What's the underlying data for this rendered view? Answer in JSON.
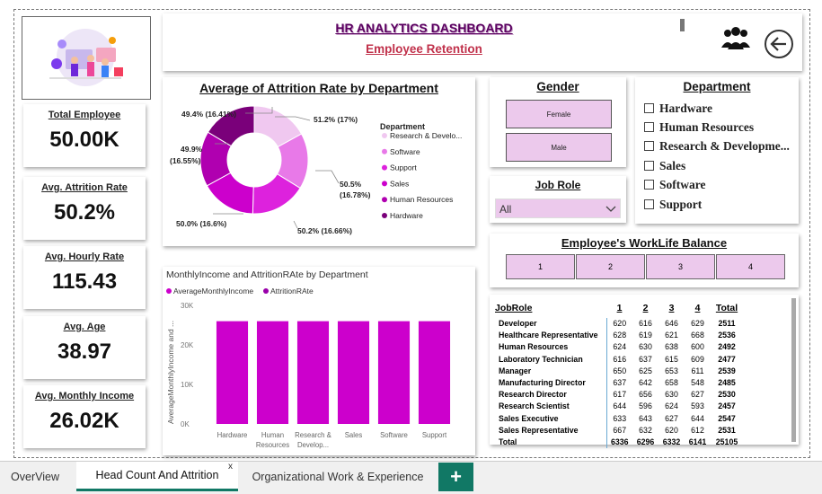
{
  "header": {
    "title": "HR ANALYTICS DASHBOARD",
    "subtitle": "Employee Retention"
  },
  "kpis": [
    {
      "label": "Total Employee",
      "value": "50.00K"
    },
    {
      "label": "Avg. Attrition Rate",
      "value": "50.2%"
    },
    {
      "label": "Avg. Hourly Rate",
      "value": "115.43"
    },
    {
      "label": "Avg. Age",
      "value": "38.97"
    },
    {
      "label": "Avg. Monthly Income",
      "value": "26.02K"
    }
  ],
  "donut": {
    "title": "Average of Attrition Rate by Department",
    "legend_title": "Department",
    "legend": [
      "Research & Develo...",
      "Software",
      "Support",
      "Sales",
      "Human Resources",
      "Hardware"
    ],
    "colors": [
      "#f0c8f0",
      "#e879e8",
      "#dd22dd",
      "#cc00cc",
      "#b000b0",
      "#7a007a"
    ],
    "labels": {
      "research": "51.2% (17%)",
      "software_a": "50.5%",
      "software_b": "(16.78%)",
      "support": "50.2% (16.66%)",
      "sales": "50.0% (16.6%)",
      "hr_a": "49.9%",
      "hr_b": "(16.55%)",
      "hardware": "49.4% (16.41%)"
    }
  },
  "bar": {
    "title": "MonthlyIncome and AttritionRAte by Department",
    "legend": [
      "AverageMonthlyIncome",
      "AttritionRAte"
    ],
    "ylabel": "AverageMonthlyIncome and ...",
    "yticks": [
      "30K",
      "20K",
      "10K",
      "0K"
    ],
    "categories": [
      {
        "line1": "Hardware",
        "line2": ""
      },
      {
        "line1": "Human",
        "line2": "Resources"
      },
      {
        "line1": "Research &",
        "line2": "Develop..."
      },
      {
        "line1": "Sales",
        "line2": ""
      },
      {
        "line1": "Software",
        "line2": ""
      },
      {
        "line1": "Support",
        "line2": ""
      }
    ]
  },
  "chart_data": {
    "type": "bar",
    "title": "MonthlyIncome and AttritionRAte by Department",
    "categories": [
      "Hardware",
      "Human Resources",
      "Research & Develop...",
      "Sales",
      "Software",
      "Support"
    ],
    "series": [
      {
        "name": "AverageMonthlyIncome",
        "values": [
          26000,
          26000,
          26000,
          26000,
          26000,
          26000
        ]
      },
      {
        "name": "AttritionRAte",
        "values": [
          0.494,
          0.499,
          0.512,
          0.5,
          0.505,
          0.502
        ]
      }
    ],
    "ylabel": "AverageMonthlyIncome and ...",
    "ylim": [
      0,
      30000
    ],
    "legend_position": "top-left",
    "donut": {
      "title": "Average of Attrition Rate by Department",
      "categories": [
        "Research & Develo...",
        "Software",
        "Support",
        "Sales",
        "Human Resources",
        "Hardware"
      ],
      "values": [
        51.2,
        50.5,
        50.2,
        50.0,
        49.9,
        49.4
      ],
      "shares": [
        17,
        16.78,
        16.66,
        16.6,
        16.55,
        16.41
      ]
    }
  },
  "gender": {
    "title": "Gender",
    "options": [
      "Female",
      "Male"
    ]
  },
  "department_slicer": {
    "title": "Department",
    "options": [
      "Hardware",
      "Human Resources",
      "Research & Developme...",
      "Sales",
      "Software",
      "Support"
    ]
  },
  "jobrole_slicer": {
    "title": "Job Role",
    "value": "All"
  },
  "worklife": {
    "title": "Employee's WorkLife Balance",
    "options": [
      "1",
      "2",
      "3",
      "4"
    ]
  },
  "jobtable": {
    "headers": [
      "JobRole",
      "1",
      "2",
      "3",
      "4",
      "Total"
    ],
    "rows": [
      [
        "Developer",
        "620",
        "616",
        "646",
        "629",
        "2511"
      ],
      [
        "Healthcare Representative",
        "628",
        "619",
        "621",
        "668",
        "2536"
      ],
      [
        "Human Resources",
        "624",
        "630",
        "638",
        "600",
        "2492"
      ],
      [
        "Laboratory Technician",
        "616",
        "637",
        "615",
        "609",
        "2477"
      ],
      [
        "Manager",
        "650",
        "625",
        "653",
        "611",
        "2539"
      ],
      [
        "Manufacturing Director",
        "637",
        "642",
        "658",
        "548",
        "2485"
      ],
      [
        "Research Director",
        "617",
        "656",
        "630",
        "627",
        "2530"
      ],
      [
        "Research Scientist",
        "644",
        "596",
        "624",
        "593",
        "2457"
      ],
      [
        "Sales Executive",
        "633",
        "643",
        "627",
        "644",
        "2547"
      ],
      [
        "Sales Representative",
        "667",
        "632",
        "620",
        "612",
        "2531"
      ]
    ],
    "total": [
      "Total",
      "6336",
      "6296",
      "6332",
      "6141",
      "25105"
    ]
  },
  "tabs": [
    "OverView",
    "Head Count And Attrition",
    "Organizational Work & Experience"
  ],
  "tab_close": "x",
  "tab_add": "+"
}
